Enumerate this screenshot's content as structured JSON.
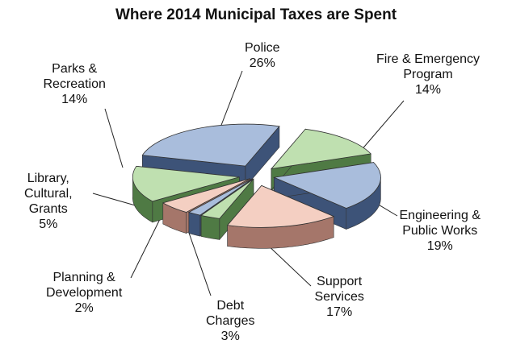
{
  "chart_data": {
    "type": "pie",
    "title": "Where 2014 Municipal Taxes are Spent",
    "slices": [
      {
        "label_lines": [
          "Police"
        ],
        "percent_text": "26%",
        "value": 26,
        "color": "#a9bddc",
        "side_color": "#3d5378"
      },
      {
        "label_lines": [
          "Fire & Emergency",
          "Program"
        ],
        "percent_text": "14%",
        "value": 14,
        "color": "#bfe0b0",
        "side_color": "#4f7a44"
      },
      {
        "label_lines": [
          "Engineering &",
          "Public Works"
        ],
        "percent_text": "19%",
        "value": 19,
        "color": "#a9bddc",
        "side_color": "#3d5378"
      },
      {
        "label_lines": [
          "Support",
          "Services"
        ],
        "percent_text": "17%",
        "value": 17,
        "color": "#f4cfc2",
        "side_color": "#a5766a"
      },
      {
        "label_lines": [
          "Debt",
          "Charges"
        ],
        "percent_text": "3%",
        "value": 3,
        "color": "#bfe0b0",
        "side_color": "#4f7a44"
      },
      {
        "label_lines": [
          "Planning &",
          "Development"
        ],
        "percent_text": "2%",
        "value": 2,
        "color": "#a9bddc",
        "side_color": "#3d5378"
      },
      {
        "label_lines": [
          "Library,",
          "Cultural,",
          "Grants"
        ],
        "percent_text": "5%",
        "value": 5,
        "color": "#f4cfc2",
        "side_color": "#a5766a"
      },
      {
        "label_lines": [
          "Parks &",
          "Recreation"
        ],
        "percent_text": "14%",
        "value": 14,
        "color": "#bfe0b0",
        "side_color": "#4f7a44"
      }
    ]
  }
}
